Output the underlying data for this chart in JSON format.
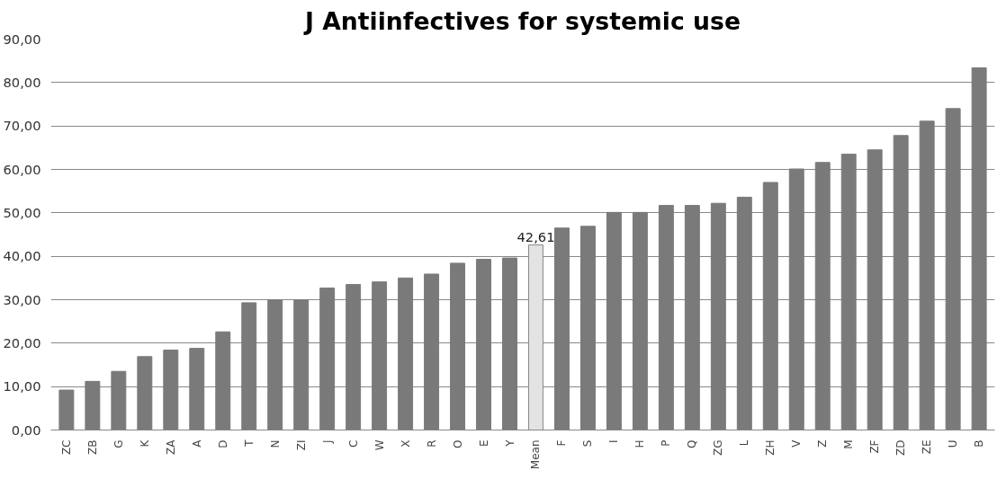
{
  "chart_data": {
    "type": "bar",
    "title": "J Antiinfectives for systemic use",
    "categories": [
      "ZC",
      "ZB",
      "G",
      "K",
      "ZA",
      "A",
      "D",
      "T",
      "N",
      "ZI",
      "J",
      "C",
      "W",
      "X",
      "R",
      "O",
      "E",
      "Y",
      "Mean",
      "F",
      "S",
      "I",
      "H",
      "P",
      "Q",
      "ZG",
      "L",
      "ZH",
      "V",
      "Z",
      "M",
      "ZF",
      "ZD",
      "ZE",
      "U",
      "B"
    ],
    "values": [
      9.2,
      11.2,
      13.5,
      16.9,
      18.4,
      18.8,
      22.6,
      29.3,
      30.0,
      30.0,
      32.7,
      33.5,
      34.1,
      35.0,
      35.9,
      38.4,
      39.3,
      39.6,
      42.61,
      46.5,
      46.9,
      50.1,
      50.1,
      51.7,
      51.7,
      52.2,
      53.6,
      57.0,
      60.1,
      61.6,
      63.5,
      64.5,
      67.8,
      71.1,
      74.0,
      83.4
    ],
    "colors": [
      "#7a7a7a",
      "#7a7a7a",
      "#7a7a7a",
      "#7a7a7a",
      "#7a7a7a",
      "#7a7a7a",
      "#7a7a7a",
      "#7a7a7a",
      "#7a7a7a",
      "#7a7a7a",
      "#7a7a7a",
      "#7a7a7a",
      "#7a7a7a",
      "#7a7a7a",
      "#7a7a7a",
      "#7a7a7a",
      "#7a7a7a",
      "#7a7a7a",
      "#e3e3e3",
      "#7a7a7a",
      "#7a7a7a",
      "#7a7a7a",
      "#7a7a7a",
      "#7a7a7a",
      "#7a7a7a",
      "#7a7a7a",
      "#7a7a7a",
      "#7a7a7a",
      "#7a7a7a",
      "#7a7a7a",
      "#7a7a7a",
      "#7a7a7a",
      "#7a7a7a",
      "#7a7a7a",
      "#7a7a7a",
      "#7a7a7a"
    ],
    "value_labels": [
      null,
      null,
      null,
      null,
      null,
      null,
      null,
      null,
      null,
      null,
      null,
      null,
      null,
      null,
      null,
      null,
      null,
      null,
      "42,61",
      null,
      null,
      null,
      null,
      null,
      null,
      null,
      null,
      null,
      null,
      null,
      null,
      null,
      null,
      null,
      null,
      null
    ],
    "ylim": [
      0,
      90
    ],
    "yticks": [
      {
        "value": 0,
        "label": "0,00"
      },
      {
        "value": 10,
        "label": "10,00"
      },
      {
        "value": 20,
        "label": "20,00"
      },
      {
        "value": 30,
        "label": "30,00"
      },
      {
        "value": 40,
        "label": "40,00"
      },
      {
        "value": 50,
        "label": "50,00"
      },
      {
        "value": 60,
        "label": "60,00"
      },
      {
        "value": 70,
        "label": "70,00"
      },
      {
        "value": 80,
        "label": "80,00"
      },
      {
        "value": 90,
        "label": "90,00"
      }
    ],
    "grid": "y"
  }
}
